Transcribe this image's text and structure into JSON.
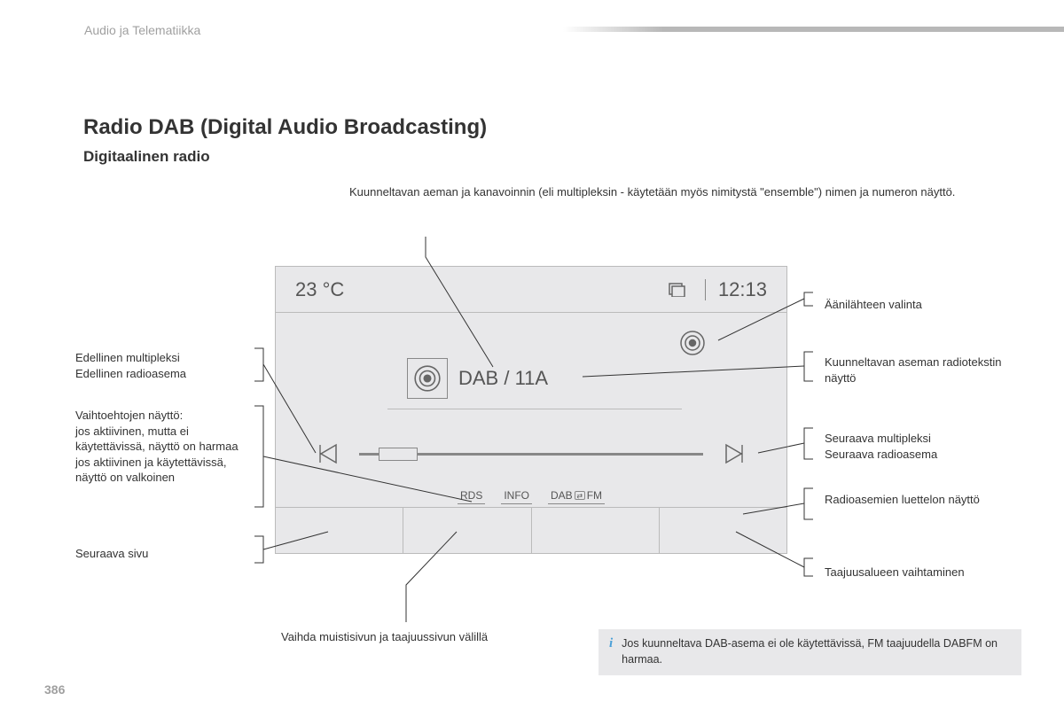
{
  "header": "Audio ja Telematiikka",
  "title": "Radio DAB (Digital Audio Broadcasting)",
  "subtitle": "Digitaalinen radio",
  "page_number": "386",
  "top_callout": "Kuunneltavan aeman ja kanavoinnin (eli multipleksin - käytetään myös nimitystä \"ensemble\") nimen ja numeron näyttö.",
  "screen": {
    "temperature": "23 °C",
    "time": "12:13",
    "channel": "DAB / 11A",
    "modes": {
      "rds": "RDS",
      "info": "INFO",
      "dab": "DAB",
      "fm": "FM"
    }
  },
  "callouts": {
    "left1": "Edellinen multipleksi\nEdellinen radioasema",
    "left2": "Vaihtoehtojen näyttö:\njos aktiivinen, mutta ei käytettävissä, näyttö on harmaa\njos aktiivinen ja käytettävissä, näyttö on valkoinen",
    "left3": "Seuraava sivu",
    "right1": "Äänilähteen valinta",
    "right2": "Kuunneltavan aseman radiotekstin näyttö",
    "right3": "Seuraava multipleksi\nSeuraava radioasema",
    "right4": "Radioasemien luettelon näyttö",
    "right5": "Taajuusalueen vaihtaminen"
  },
  "bottom_callout": "Vaihda muistisivun ja taajuussivun välillä",
  "info_box": "Jos kuunneltava DAB-asema ei ole käytettävissä, FM taajuudella DABFM on harmaa.",
  "colors": {
    "screen_bg": "#e8e8ea",
    "text_gray": "#a0a0a0",
    "line": "#333333"
  }
}
